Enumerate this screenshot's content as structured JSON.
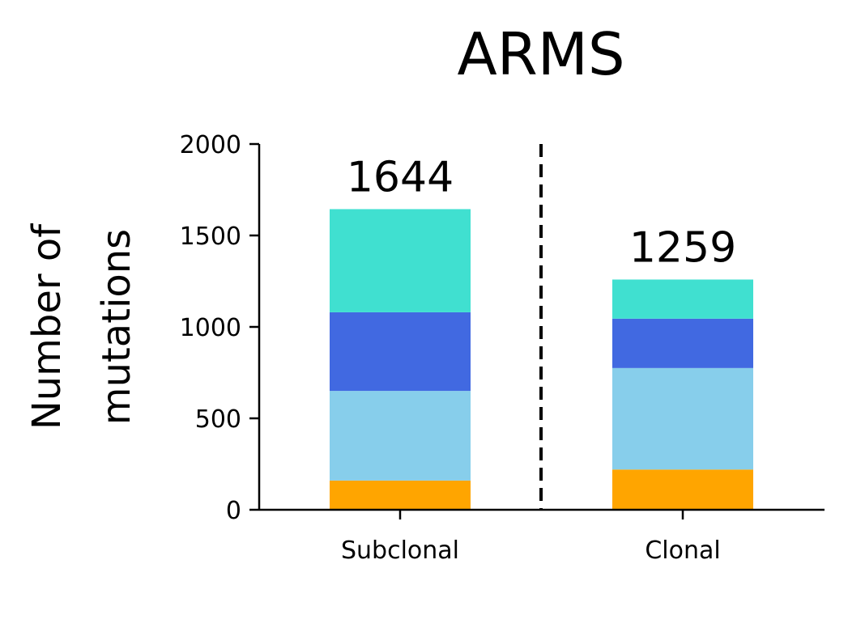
{
  "chart_data": {
    "type": "bar",
    "stacked": true,
    "title": "ARMS",
    "ylabel_lines": [
      "Number of",
      "mutations"
    ],
    "xlabel": "",
    "categories": [
      "Subclonal",
      "Clonal"
    ],
    "series": [
      {
        "values": [
          160,
          220
        ],
        "color": "#FFA500"
      },
      {
        "values": [
          490,
          555
        ],
        "color": "#87CEEB"
      },
      {
        "values": [
          430,
          270
        ],
        "color": "#4169E1"
      },
      {
        "values": [
          564,
          214
        ],
        "color": "#40E0D0"
      }
    ],
    "totals": [
      "1644",
      "1259"
    ],
    "ylim": [
      0,
      2000
    ],
    "yticks": [
      0,
      500,
      1000,
      1500,
      2000
    ],
    "divider": "dashed vertical line between categories",
    "grid": false,
    "legend": "none"
  }
}
